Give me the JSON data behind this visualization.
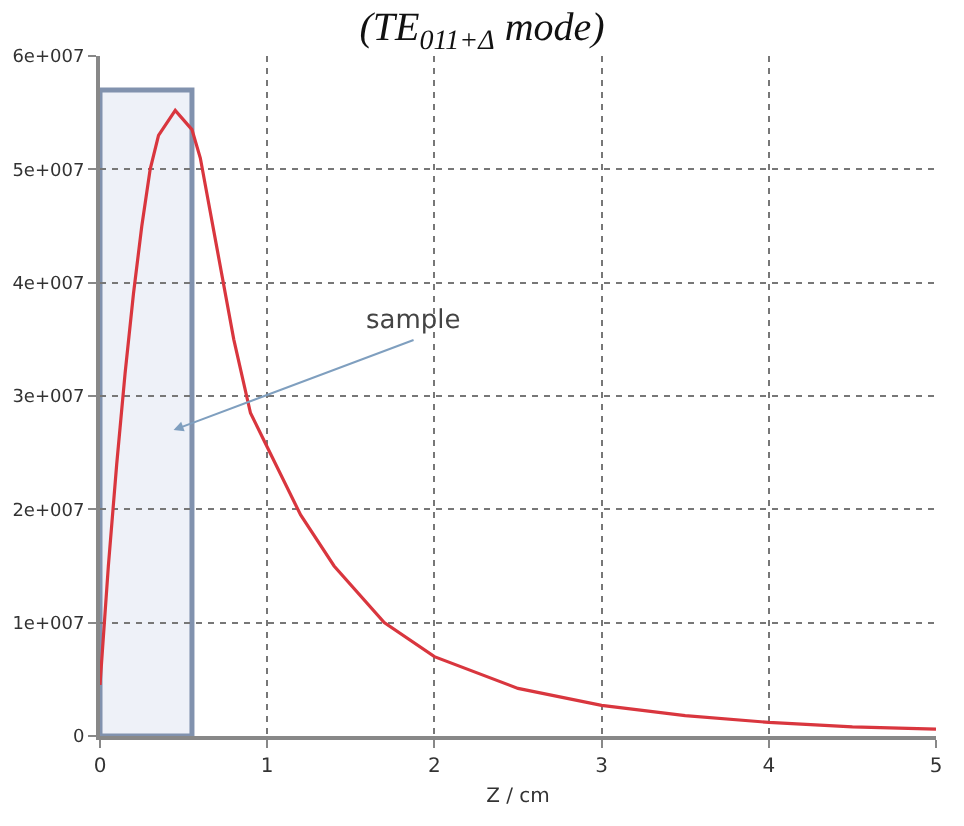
{
  "chart_data": {
    "type": "line",
    "title": "(TE$_{011+Δ}$ mode)",
    "xlabel": "Z / cm",
    "x": [
      0,
      0.05,
      0.1,
      0.15,
      0.2,
      0.25,
      0.3,
      0.35,
      0.45,
      0.55,
      0.6,
      0.7,
      0.8,
      0.9,
      1.0,
      1.2,
      1.4,
      1.7,
      2.0,
      2.5,
      3.0,
      3.5,
      4.0,
      4.5,
      5.0
    ],
    "series": [
      {
        "color": "#d9363e",
        "values": [
          4500000,
          15000000,
          24000000,
          32000000,
          39000000,
          45000000,
          50000000,
          53000000,
          55200000,
          53500000,
          51000000,
          43000000,
          35000000,
          28500000,
          25500000,
          19500000,
          15000000,
          10000000,
          7000000,
          4200000,
          2700000,
          1800000,
          1200000,
          800000,
          600000
        ]
      }
    ],
    "xlim": [
      0,
      5
    ],
    "xticks": [
      0,
      1,
      2,
      3,
      4,
      5
    ],
    "ylim": [
      0,
      60000000
    ],
    "yticks": [
      {
        "value": 0,
        "label": "0"
      },
      {
        "value": 10000000,
        "label": "1e+007"
      },
      {
        "value": 20000000,
        "label": "2e+007"
      },
      {
        "value": 30000000,
        "label": "3e+007"
      },
      {
        "value": 40000000,
        "label": "4e+007"
      },
      {
        "value": 50000000,
        "label": "5e+007"
      },
      {
        "value": 60000000,
        "label": "6e+007"
      }
    ],
    "bands": [
      {
        "axis": "x",
        "from": 0,
        "to": 0.55,
        "label": "sample",
        "color": "#e3e9f4"
      }
    ],
    "grid": true,
    "marker": "none",
    "line_style": "solid"
  }
}
